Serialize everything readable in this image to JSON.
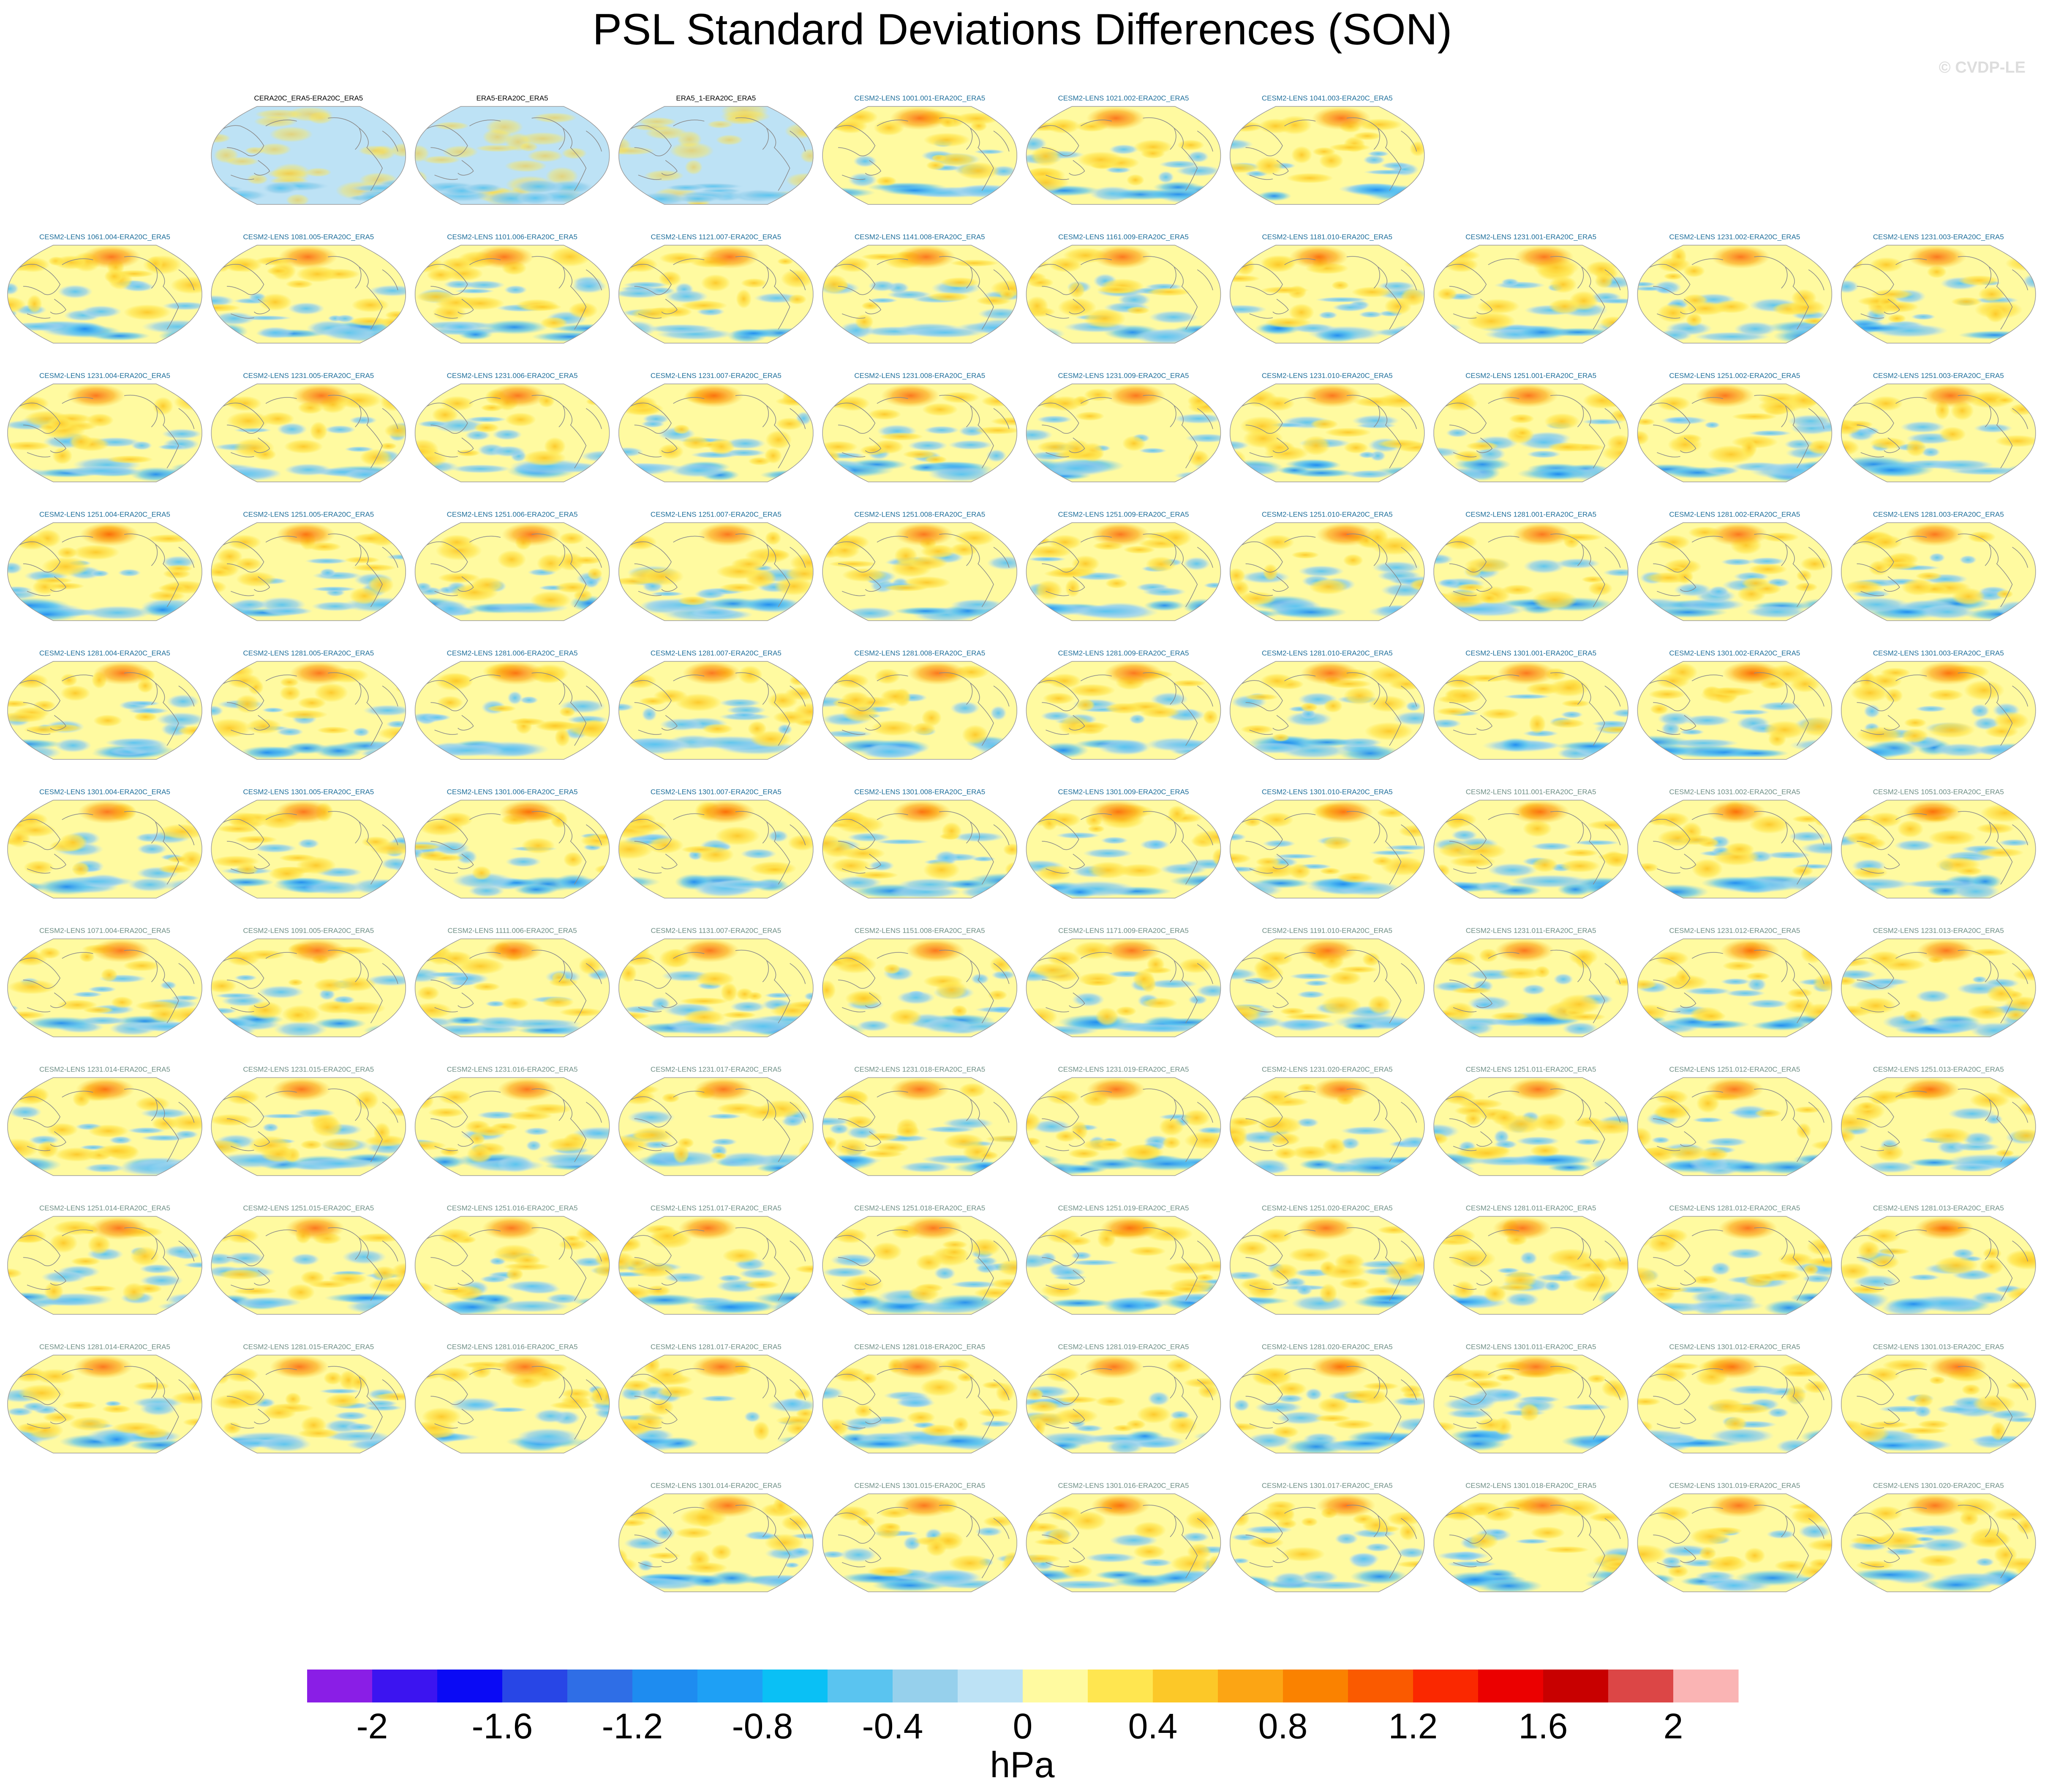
{
  "chart_data": {
    "type": "heatmap",
    "title": "PSL Standard Deviations Differences (SON)",
    "watermark": "© CVDP-LE",
    "panel_kind": "global map (Robinson projection) of standard deviation differences",
    "panels": [
      {
        "label": "CERA20C_ERA5-ERA20C_ERA5",
        "label_color": "#000000"
      },
      {
        "label": "ERA5-ERA20C_ERA5",
        "label_color": "#000000"
      },
      {
        "label": "ERA5_1-ERA20C_ERA5",
        "label_color": "#000000"
      },
      {
        "label": "CESM2-LENS 1001.001-ERA20C_ERA5",
        "label_color": "#1f6f9b"
      },
      {
        "label": "CESM2-LENS 1021.002-ERA20C_ERA5",
        "label_color": "#1f6f9b"
      },
      {
        "label": "CESM2-LENS 1041.003-ERA20C_ERA5",
        "label_color": "#1f6f9b"
      },
      {
        "label": "CESM2-LENS 1061.004-ERA20C_ERA5",
        "label_color": "#1f6f9b"
      },
      {
        "label": "CESM2-LENS 1081.005-ERA20C_ERA5",
        "label_color": "#1f6f9b"
      },
      {
        "label": "CESM2-LENS 1101.006-ERA20C_ERA5",
        "label_color": "#1f6f9b"
      },
      {
        "label": "CESM2-LENS 1121.007-ERA20C_ERA5",
        "label_color": "#1f6f9b"
      },
      {
        "label": "CESM2-LENS 1141.008-ERA20C_ERA5",
        "label_color": "#1f6f9b"
      },
      {
        "label": "CESM2-LENS 1161.009-ERA20C_ERA5",
        "label_color": "#1f6f9b"
      },
      {
        "label": "CESM2-LENS 1181.010-ERA20C_ERA5",
        "label_color": "#1f6f9b"
      },
      {
        "label": "CESM2-LENS 1231.001-ERA20C_ERA5",
        "label_color": "#1f6f9b"
      },
      {
        "label": "CESM2-LENS 1231.002-ERA20C_ERA5",
        "label_color": "#1f6f9b"
      },
      {
        "label": "CESM2-LENS 1231.003-ERA20C_ERA5",
        "label_color": "#1f6f9b"
      },
      {
        "label": "CESM2-LENS 1231.004-ERA20C_ERA5",
        "label_color": "#1f6f9b"
      },
      {
        "label": "CESM2-LENS 1231.005-ERA20C_ERA5",
        "label_color": "#1f6f9b"
      },
      {
        "label": "CESM2-LENS 1231.006-ERA20C_ERA5",
        "label_color": "#1f6f9b"
      },
      {
        "label": "CESM2-LENS 1231.007-ERA20C_ERA5",
        "label_color": "#1f6f9b"
      },
      {
        "label": "CESM2-LENS 1231.008-ERA20C_ERA5",
        "label_color": "#1f6f9b"
      },
      {
        "label": "CESM2-LENS 1231.009-ERA20C_ERA5",
        "label_color": "#1f6f9b"
      },
      {
        "label": "CESM2-LENS 1231.010-ERA20C_ERA5",
        "label_color": "#1f6f9b"
      },
      {
        "label": "CESM2-LENS 1251.001-ERA20C_ERA5",
        "label_color": "#1f6f9b"
      },
      {
        "label": "CESM2-LENS 1251.002-ERA20C_ERA5",
        "label_color": "#1f6f9b"
      },
      {
        "label": "CESM2-LENS 1251.003-ERA20C_ERA5",
        "label_color": "#1f6f9b"
      },
      {
        "label": "CESM2-LENS 1251.004-ERA20C_ERA5",
        "label_color": "#1f6f9b"
      },
      {
        "label": "CESM2-LENS 1251.005-ERA20C_ERA5",
        "label_color": "#1f6f9b"
      },
      {
        "label": "CESM2-LENS 1251.006-ERA20C_ERA5",
        "label_color": "#1f6f9b"
      },
      {
        "label": "CESM2-LENS 1251.007-ERA20C_ERA5",
        "label_color": "#1f6f9b"
      },
      {
        "label": "CESM2-LENS 1251.008-ERA20C_ERA5",
        "label_color": "#1f6f9b"
      },
      {
        "label": "CESM2-LENS 1251.009-ERA20C_ERA5",
        "label_color": "#1f6f9b"
      },
      {
        "label": "CESM2-LENS 1251.010-ERA20C_ERA5",
        "label_color": "#1f6f9b"
      },
      {
        "label": "CESM2-LENS 1281.001-ERA20C_ERA5",
        "label_color": "#1f6f9b"
      },
      {
        "label": "CESM2-LENS 1281.002-ERA20C_ERA5",
        "label_color": "#1f6f9b"
      },
      {
        "label": "CESM2-LENS 1281.003-ERA20C_ERA5",
        "label_color": "#1f6f9b"
      },
      {
        "label": "CESM2-LENS 1281.004-ERA20C_ERA5",
        "label_color": "#1f6f9b"
      },
      {
        "label": "CESM2-LENS 1281.005-ERA20C_ERA5",
        "label_color": "#1f6f9b"
      },
      {
        "label": "CESM2-LENS 1281.006-ERA20C_ERA5",
        "label_color": "#1f6f9b"
      },
      {
        "label": "CESM2-LENS 1281.007-ERA20C_ERA5",
        "label_color": "#1f6f9b"
      },
      {
        "label": "CESM2-LENS 1281.008-ERA20C_ERA5",
        "label_color": "#1f6f9b"
      },
      {
        "label": "CESM2-LENS 1281.009-ERA20C_ERA5",
        "label_color": "#1f6f9b"
      },
      {
        "label": "CESM2-LENS 1281.010-ERA20C_ERA5",
        "label_color": "#1f6f9b"
      },
      {
        "label": "CESM2-LENS 1301.001-ERA20C_ERA5",
        "label_color": "#1f6f9b"
      },
      {
        "label": "CESM2-LENS 1301.002-ERA20C_ERA5",
        "label_color": "#1f6f9b"
      },
      {
        "label": "CESM2-LENS 1301.003-ERA20C_ERA5",
        "label_color": "#1f6f9b"
      },
      {
        "label": "CESM2-LENS 1301.004-ERA20C_ERA5",
        "label_color": "#1f6f9b"
      },
      {
        "label": "CESM2-LENS 1301.005-ERA20C_ERA5",
        "label_color": "#1f6f9b"
      },
      {
        "label": "CESM2-LENS 1301.006-ERA20C_ERA5",
        "label_color": "#1f6f9b"
      },
      {
        "label": "CESM2-LENS 1301.007-ERA20C_ERA5",
        "label_color": "#1f6f9b"
      },
      {
        "label": "CESM2-LENS 1301.008-ERA20C_ERA5",
        "label_color": "#1f6f9b"
      },
      {
        "label": "CESM2-LENS 1301.009-ERA20C_ERA5",
        "label_color": "#1f6f9b"
      },
      {
        "label": "CESM2-LENS 1301.010-ERA20C_ERA5",
        "label_color": "#1f6f9b"
      },
      {
        "label": "CESM2-LENS 1011.001-ERA20C_ERA5",
        "label_color": "#6f8f86"
      },
      {
        "label": "CESM2-LENS 1031.002-ERA20C_ERA5",
        "label_color": "#6f8f86"
      },
      {
        "label": "CESM2-LENS 1051.003-ERA20C_ERA5",
        "label_color": "#6f8f86"
      },
      {
        "label": "CESM2-LENS 1071.004-ERA20C_ERA5",
        "label_color": "#6f8f86"
      },
      {
        "label": "CESM2-LENS 1091.005-ERA20C_ERA5",
        "label_color": "#6f8f86"
      },
      {
        "label": "CESM2-LENS 1111.006-ERA20C_ERA5",
        "label_color": "#6f8f86"
      },
      {
        "label": "CESM2-LENS 1131.007-ERA20C_ERA5",
        "label_color": "#6f8f86"
      },
      {
        "label": "CESM2-LENS 1151.008-ERA20C_ERA5",
        "label_color": "#6f8f86"
      },
      {
        "label": "CESM2-LENS 1171.009-ERA20C_ERA5",
        "label_color": "#6f8f86"
      },
      {
        "label": "CESM2-LENS 1191.010-ERA20C_ERA5",
        "label_color": "#6f8f86"
      },
      {
        "label": "CESM2-LENS 1231.011-ERA20C_ERA5",
        "label_color": "#6f8f86"
      },
      {
        "label": "CESM2-LENS 1231.012-ERA20C_ERA5",
        "label_color": "#6f8f86"
      },
      {
        "label": "CESM2-LENS 1231.013-ERA20C_ERA5",
        "label_color": "#6f8f86"
      },
      {
        "label": "CESM2-LENS 1231.014-ERA20C_ERA5",
        "label_color": "#6f8f86"
      },
      {
        "label": "CESM2-LENS 1231.015-ERA20C_ERA5",
        "label_color": "#6f8f86"
      },
      {
        "label": "CESM2-LENS 1231.016-ERA20C_ERA5",
        "label_color": "#6f8f86"
      },
      {
        "label": "CESM2-LENS 1231.017-ERA20C_ERA5",
        "label_color": "#6f8f86"
      },
      {
        "label": "CESM2-LENS 1231.018-ERA20C_ERA5",
        "label_color": "#6f8f86"
      },
      {
        "label": "CESM2-LENS 1231.019-ERA20C_ERA5",
        "label_color": "#6f8f86"
      },
      {
        "label": "CESM2-LENS 1231.020-ERA20C_ERA5",
        "label_color": "#6f8f86"
      },
      {
        "label": "CESM2-LENS 1251.011-ERA20C_ERA5",
        "label_color": "#6f8f86"
      },
      {
        "label": "CESM2-LENS 1251.012-ERA20C_ERA5",
        "label_color": "#6f8f86"
      },
      {
        "label": "CESM2-LENS 1251.013-ERA20C_ERA5",
        "label_color": "#6f8f86"
      },
      {
        "label": "CESM2-LENS 1251.014-ERA20C_ERA5",
        "label_color": "#6f8f86"
      },
      {
        "label": "CESM2-LENS 1251.015-ERA20C_ERA5",
        "label_color": "#6f8f86"
      },
      {
        "label": "CESM2-LENS 1251.016-ERA20C_ERA5",
        "label_color": "#6f8f86"
      },
      {
        "label": "CESM2-LENS 1251.017-ERA20C_ERA5",
        "label_color": "#6f8f86"
      },
      {
        "label": "CESM2-LENS 1251.018-ERA20C_ERA5",
        "label_color": "#6f8f86"
      },
      {
        "label": "CESM2-LENS 1251.019-ERA20C_ERA5",
        "label_color": "#6f8f86"
      },
      {
        "label": "CESM2-LENS 1251.020-ERA20C_ERA5",
        "label_color": "#6f8f86"
      },
      {
        "label": "CESM2-LENS 1281.011-ERA20C_ERA5",
        "label_color": "#6f8f86"
      },
      {
        "label": "CESM2-LENS 1281.012-ERA20C_ERA5",
        "label_color": "#6f8f86"
      },
      {
        "label": "CESM2-LENS 1281.013-ERA20C_ERA5",
        "label_color": "#6f8f86"
      },
      {
        "label": "CESM2-LENS 1281.014-ERA20C_ERA5",
        "label_color": "#6f8f86"
      },
      {
        "label": "CESM2-LENS 1281.015-ERA20C_ERA5",
        "label_color": "#6f8f86"
      },
      {
        "label": "CESM2-LENS 1281.016-ERA20C_ERA5",
        "label_color": "#6f8f86"
      },
      {
        "label": "CESM2-LENS 1281.017-ERA20C_ERA5",
        "label_color": "#6f8f86"
      },
      {
        "label": "CESM2-LENS 1281.018-ERA20C_ERA5",
        "label_color": "#6f8f86"
      },
      {
        "label": "CESM2-LENS 1281.019-ERA20C_ERA5",
        "label_color": "#6f8f86"
      },
      {
        "label": "CESM2-LENS 1281.020-ERA20C_ERA5",
        "label_color": "#6f8f86"
      },
      {
        "label": "CESM2-LENS 1301.011-ERA20C_ERA5",
        "label_color": "#6f8f86"
      },
      {
        "label": "CESM2-LENS 1301.012-ERA20C_ERA5",
        "label_color": "#6f8f86"
      },
      {
        "label": "CESM2-LENS 1301.013-ERA20C_ERA5",
        "label_color": "#6f8f86"
      },
      {
        "label": "CESM2-LENS 1301.014-ERA20C_ERA5",
        "label_color": "#6f8f86"
      },
      {
        "label": "CESM2-LENS 1301.015-ERA20C_ERA5",
        "label_color": "#6f8f86"
      },
      {
        "label": "CESM2-LENS 1301.016-ERA20C_ERA5",
        "label_color": "#6f8f86"
      },
      {
        "label": "CESM2-LENS 1301.017-ERA20C_ERA5",
        "label_color": "#6f8f86"
      },
      {
        "label": "CESM2-LENS 1301.018-ERA20C_ERA5",
        "label_color": "#6f8f86"
      },
      {
        "label": "CESM2-LENS 1301.019-ERA20C_ERA5",
        "label_color": "#6f8f86"
      },
      {
        "label": "CESM2-LENS 1301.020-ERA20C_ERA5",
        "label_color": "#6f8f86"
      }
    ],
    "colorbar": {
      "label": "hPa",
      "tick_labels": [
        "-2",
        "-1.6",
        "-1.2",
        "-0.8",
        "-0.4",
        "0",
        "0.4",
        "0.8",
        "1.2",
        "1.6",
        "2"
      ],
      "levels": [
        -2.2,
        -2,
        -1.8,
        -1.6,
        -1.4,
        -1.2,
        -1,
        -0.8,
        -0.6,
        -0.4,
        -0.2,
        0,
        0.2,
        0.4,
        0.6,
        0.8,
        1,
        1.2,
        1.4,
        1.6,
        1.8,
        2,
        2.2
      ],
      "colors": [
        "#8a1ee6",
        "#3c14f0",
        "#0a0af5",
        "#2846e6",
        "#2f6ee6",
        "#1e8cf0",
        "#1ea0f5",
        "#0ac0f5",
        "#5ac4f0",
        "#96d0ec",
        "#bde2f5",
        "#fffaa0",
        "#ffe650",
        "#fcc828",
        "#fca514",
        "#fa8200",
        "#fa5a00",
        "#fa2800",
        "#eb0000",
        "#c80000",
        "#dc4646",
        "#fab4b4"
      ]
    },
    "legend_placement": "bottom"
  }
}
